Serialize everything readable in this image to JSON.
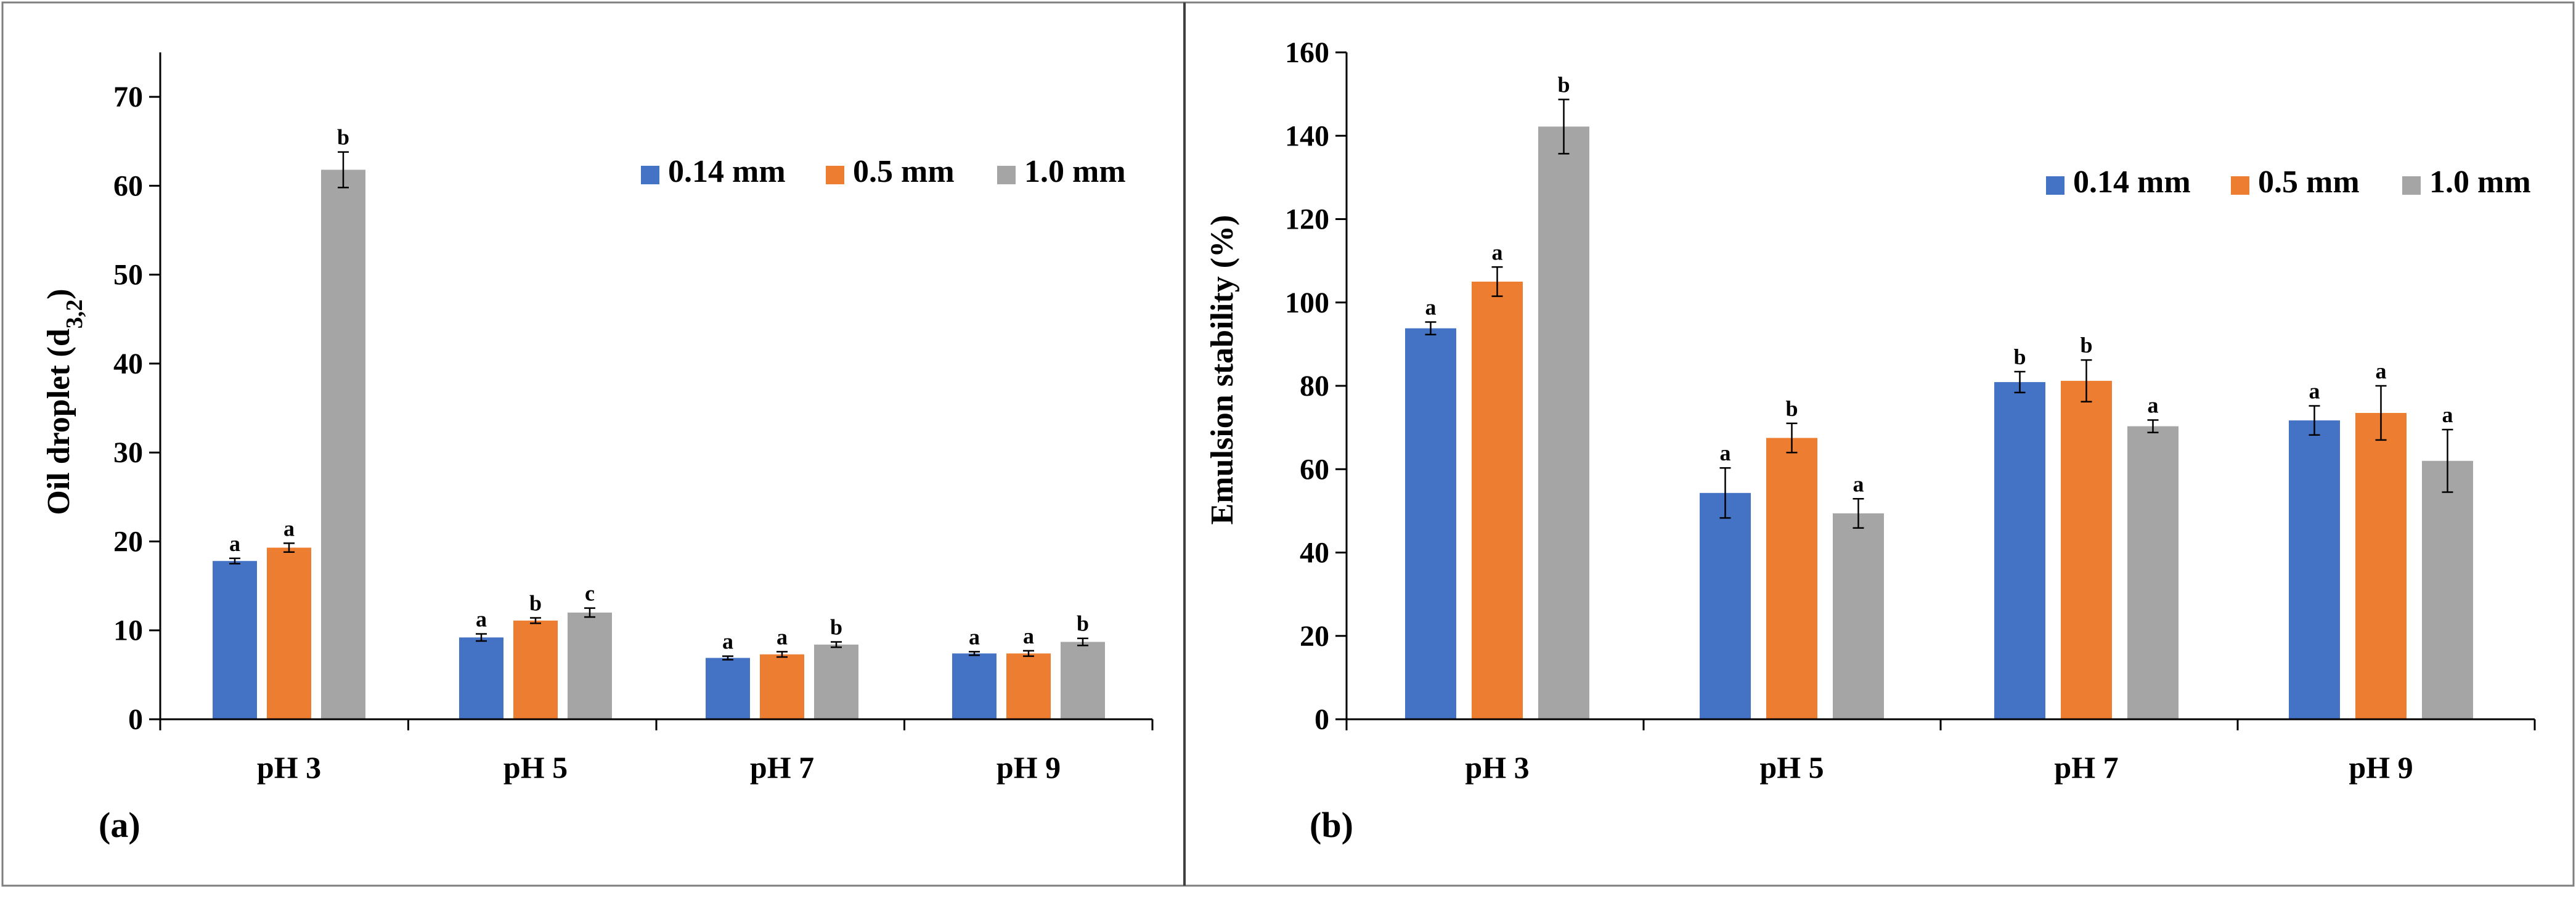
{
  "colors": {
    "series": [
      "#4472C4",
      "#ED7D31",
      "#A5A5A5"
    ],
    "axis": "#000000",
    "frame": "#7F7F7F",
    "divider": "#404040"
  },
  "chart_data": [
    {
      "type": "bar",
      "panel_label": "(a)",
      "categories": [
        "pH 3",
        "pH 5",
        "pH 7",
        "pH 9"
      ],
      "ylabel_main": "Oil droplet (d",
      "ylabel_sub": "3,2",
      "ylabel_end": ")",
      "xlabel": "",
      "ylim": [
        0,
        75
      ],
      "yticks": [
        0,
        10,
        20,
        30,
        40,
        50,
        60,
        70
      ],
      "legend_position": "top-right",
      "grid": false,
      "series": [
        {
          "name": "0.14 mm",
          "values": [
            17.8,
            9.2,
            6.9,
            7.4
          ],
          "errors": [
            0.3,
            0.4,
            0.2,
            0.2
          ],
          "letters": [
            "a",
            "a",
            "a",
            "a"
          ]
        },
        {
          "name": "0.5 mm",
          "values": [
            19.3,
            11.1,
            7.3,
            7.4
          ],
          "errors": [
            0.5,
            0.3,
            0.3,
            0.3
          ],
          "letters": [
            "a",
            "b",
            "a",
            "a"
          ]
        },
        {
          "name": "1.0 mm",
          "values": [
            61.8,
            12.0,
            8.4,
            8.7
          ],
          "errors": [
            2.0,
            0.5,
            0.3,
            0.4
          ],
          "letters": [
            "b",
            "c",
            "b",
            "b"
          ]
        }
      ]
    },
    {
      "type": "bar",
      "panel_label": "(b)",
      "categories": [
        "pH 3",
        "pH 5",
        "pH 7",
        "pH 9"
      ],
      "ylabel_main": "Emulsion stability (%)",
      "ylabel_sub": "",
      "ylabel_end": "",
      "xlabel": "",
      "ylim": [
        0,
        160
      ],
      "yticks": [
        0,
        20,
        40,
        60,
        80,
        100,
        120,
        140,
        160
      ],
      "legend_position": "top-right",
      "grid": false,
      "series": [
        {
          "name": "0.14 mm",
          "values": [
            93.8,
            54.3,
            80.9,
            71.7
          ],
          "errors": [
            1.5,
            6.0,
            2.5,
            3.5
          ],
          "letters": [
            "a",
            "a",
            "b",
            "a"
          ]
        },
        {
          "name": "0.5 mm",
          "values": [
            105.0,
            67.5,
            81.2,
            73.5
          ],
          "errors": [
            3.5,
            3.5,
            5.0,
            6.5
          ],
          "letters": [
            "a",
            "b",
            "b",
            "a"
          ]
        },
        {
          "name": "1.0 mm",
          "values": [
            142.2,
            49.4,
            70.3,
            62.0
          ],
          "errors": [
            6.5,
            3.5,
            1.5,
            7.5
          ],
          "letters": [
            "b",
            "a",
            "a",
            "a"
          ]
        }
      ]
    }
  ]
}
